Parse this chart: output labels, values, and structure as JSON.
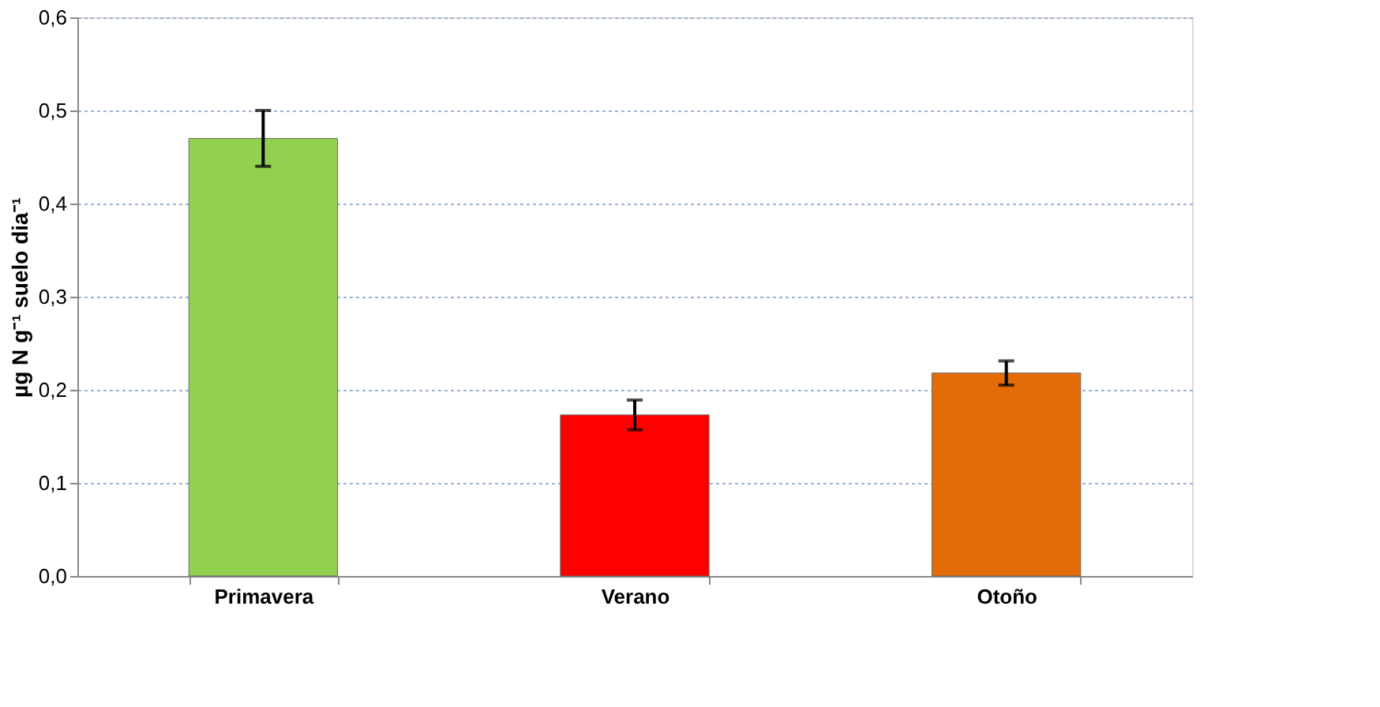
{
  "chart_data": {
    "type": "bar",
    "ylabel": "µg N g⁻¹ suelo dia⁻¹",
    "categories": [
      "Primavera",
      "Verano",
      "Otoño"
    ],
    "values": [
      0.47,
      0.173,
      0.218
    ],
    "colors": [
      "#92d050",
      "#ff0000",
      "#e36c09"
    ],
    "errors": [
      0.03,
      0.016,
      0.013
    ],
    "ylim": [
      0,
      0.6
    ],
    "yticks": [
      {
        "value": 0,
        "label": "0,0"
      },
      {
        "value": 0.1,
        "label": "0,1"
      },
      {
        "value": 0.2,
        "label": "0,2"
      },
      {
        "value": 0.3,
        "label": "0,3"
      },
      {
        "value": 0.4,
        "label": "0,4"
      },
      {
        "value": 0.5,
        "label": "0,5"
      },
      {
        "value": 0.6,
        "label": "0,6"
      }
    ],
    "grid": "y"
  }
}
